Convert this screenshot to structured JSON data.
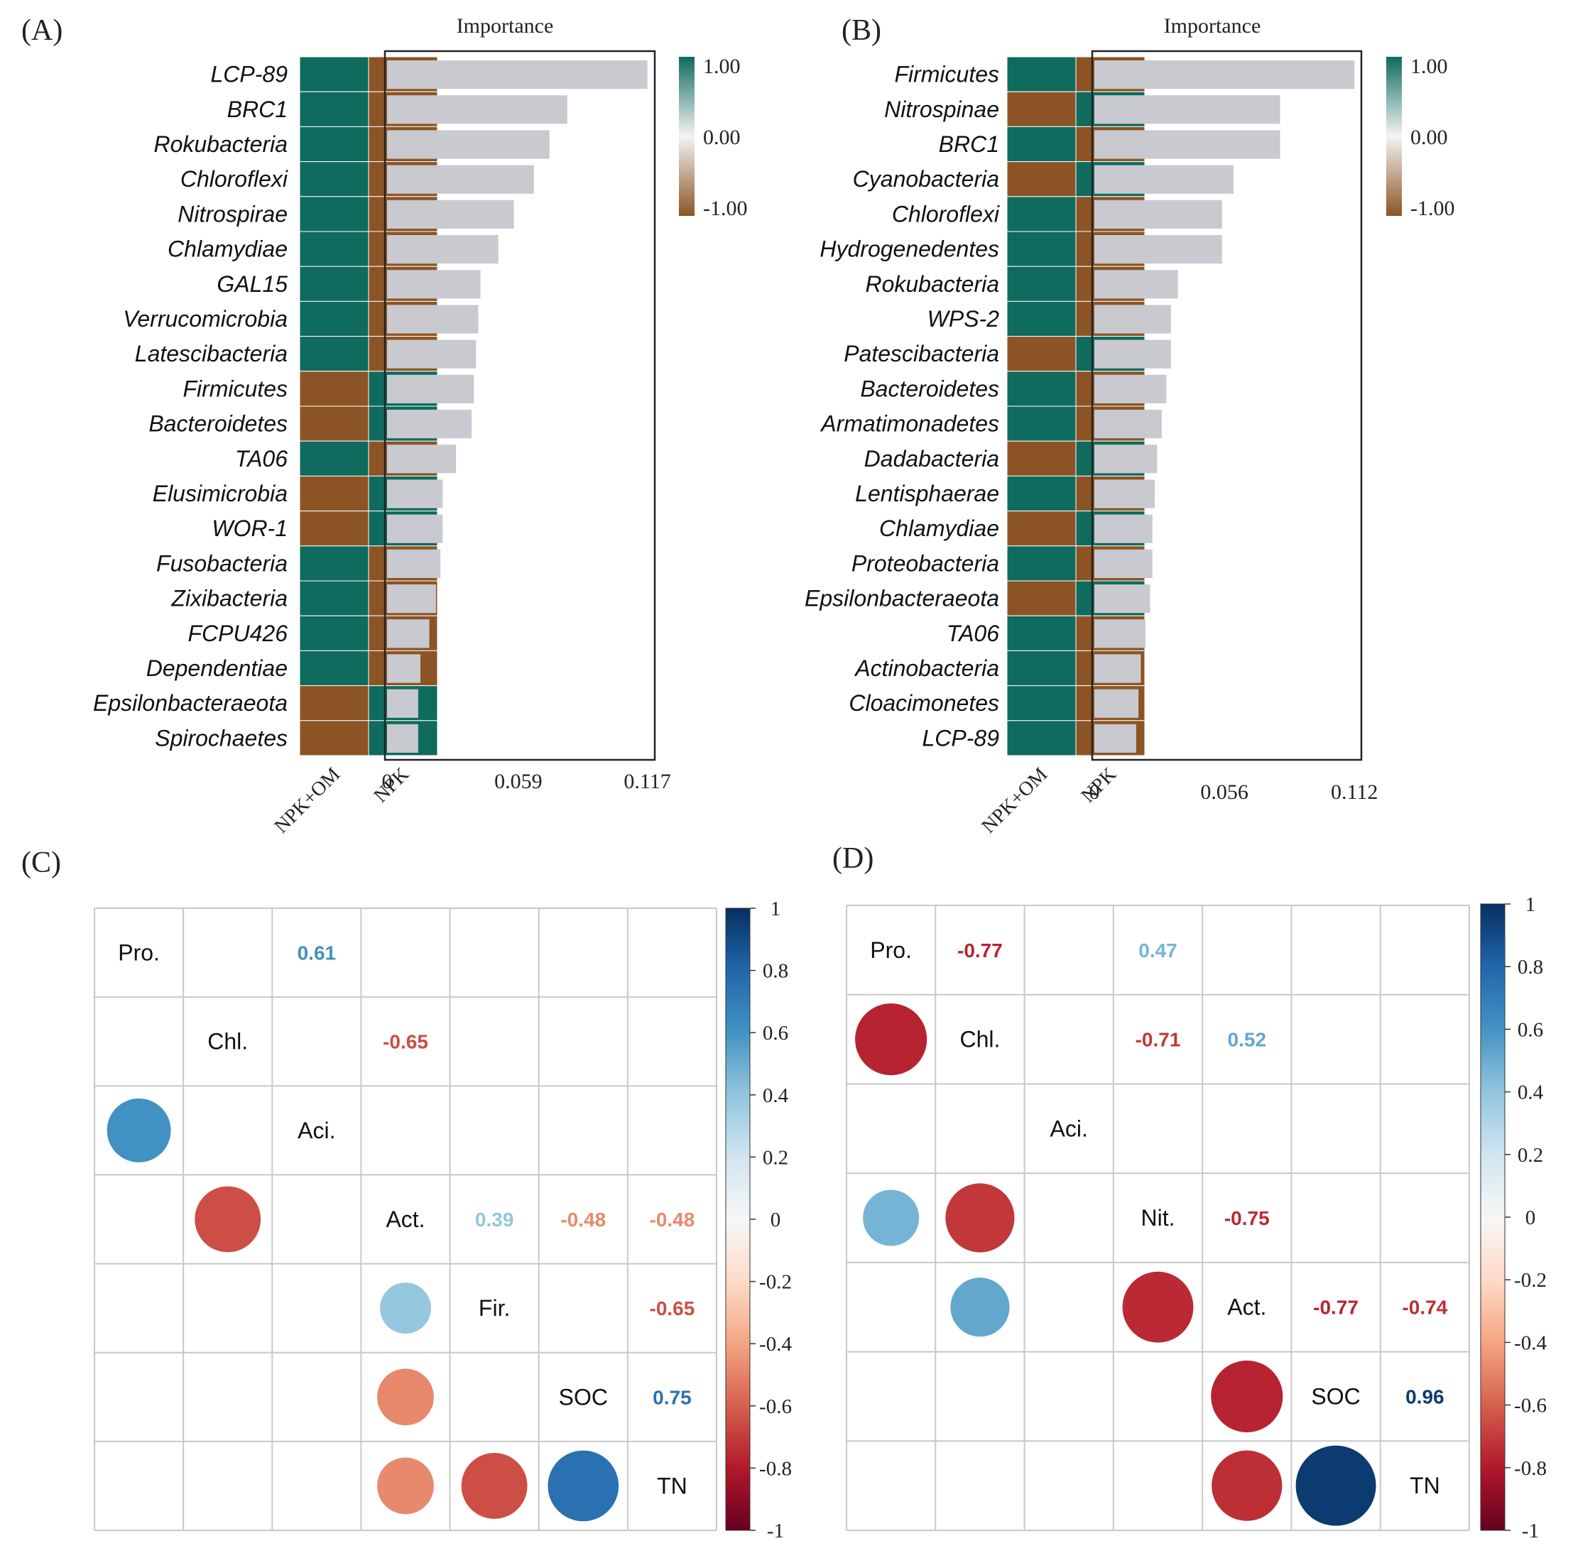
{
  "panels": {
    "a": {
      "label": "(A)"
    },
    "b": {
      "label": "(B)"
    },
    "c": {
      "label": "(C)"
    },
    "d": {
      "label": "(D)"
    }
  },
  "heatmap_columns": [
    "NPK+OM",
    "NPK"
  ],
  "colors": {
    "teal": "#0f6b5e",
    "brown": "#8c5425",
    "bar": "#c9cacf",
    "grid": "#c8c8c8"
  },
  "chart_data": [
    {
      "id": "A",
      "type": "bar",
      "orientation": "horizontal",
      "title": "Importance",
      "categories": [
        "LCP-89",
        "BRC1",
        "Rokubacteria",
        "Chloroflexi",
        "Nitrospirae",
        "Chlamydiae",
        "GAL15",
        "Verrucomicrobia",
        "Latescibacteria",
        "Firmicutes",
        "Bacteroidetes",
        "TA06",
        "Elusimicrobia",
        "WOR-1",
        "Fusobacteria",
        "Zixibacteria",
        "FCPU426",
        "Dependentiae",
        "Epsilonbacteraeota",
        "Spirochaetes"
      ],
      "values": [
        0.117,
        0.081,
        0.073,
        0.066,
        0.057,
        0.05,
        0.042,
        0.041,
        0.04,
        0.039,
        0.038,
        0.031,
        0.025,
        0.025,
        0.024,
        0.022,
        0.019,
        0.015,
        0.014,
        0.014
      ],
      "heatmap": [
        [
          1,
          -1
        ],
        [
          1,
          -1
        ],
        [
          1,
          -1
        ],
        [
          1,
          -1
        ],
        [
          1,
          -1
        ],
        [
          1,
          -1
        ],
        [
          1,
          -1
        ],
        [
          1,
          -1
        ],
        [
          1,
          -1
        ],
        [
          -1,
          1
        ],
        [
          -1,
          1
        ],
        [
          1,
          -1
        ],
        [
          -1,
          1
        ],
        [
          -1,
          1
        ],
        [
          1,
          -1
        ],
        [
          1,
          -1
        ],
        [
          1,
          -1
        ],
        [
          1,
          -1
        ],
        [
          -1,
          1
        ],
        [
          -1,
          1
        ]
      ],
      "xlim": [
        0,
        0.12
      ],
      "xticks": [
        "0",
        "0.059",
        "0.117"
      ],
      "xtick_values": [
        0,
        0.059,
        0.117
      ],
      "colorbar": {
        "ticks": [
          "1.00",
          "0.00",
          "-1.00"
        ],
        "range": [
          -1,
          1
        ]
      }
    },
    {
      "id": "B",
      "type": "bar",
      "orientation": "horizontal",
      "title": "Importance",
      "categories": [
        "Firmicutes",
        "Nitrospinae",
        "BRC1",
        "Cyanobacteria",
        "Chloroflexi",
        "Hydrogenedentes",
        "Rokubacteria",
        "WPS-2",
        "Patescibacteria",
        "Bacteroidetes",
        "Armatimonadetes",
        "Dadabacteria",
        "Lentisphaerae",
        "Chlamydiae",
        "Proteobacteria",
        "Epsilonbacteraeota",
        "TA06",
        "Actinobacteria",
        "Cloacimonetes",
        "LCP-89"
      ],
      "values": [
        0.112,
        0.08,
        0.08,
        0.06,
        0.055,
        0.055,
        0.036,
        0.033,
        0.033,
        0.031,
        0.029,
        0.027,
        0.026,
        0.025,
        0.025,
        0.024,
        0.022,
        0.02,
        0.019,
        0.018
      ],
      "heatmap": [
        [
          1,
          -1
        ],
        [
          -1,
          1
        ],
        [
          1,
          -1
        ],
        [
          -1,
          1
        ],
        [
          1,
          -1
        ],
        [
          1,
          -1
        ],
        [
          1,
          -1
        ],
        [
          1,
          -1
        ],
        [
          -1,
          1
        ],
        [
          1,
          -1
        ],
        [
          1,
          -1
        ],
        [
          -1,
          1
        ],
        [
          1,
          -1
        ],
        [
          -1,
          1
        ],
        [
          1,
          -1
        ],
        [
          -1,
          1
        ],
        [
          1,
          -1
        ],
        [
          1,
          -1
        ],
        [
          1,
          -1
        ],
        [
          1,
          -1
        ]
      ],
      "xlim": [
        0,
        0.1147
      ],
      "xticks": [
        "0",
        "0.056",
        "0.112"
      ],
      "xtick_values": [
        0,
        0.056,
        0.112
      ],
      "colorbar": {
        "ticks": [
          "1.00",
          "0.00",
          "-1.00"
        ],
        "range": [
          -1,
          1
        ]
      }
    },
    {
      "id": "C",
      "type": "heatmap",
      "subtype": "correlation-matrix",
      "variables": [
        "Pro.",
        "Chl.",
        "Aci.",
        "Act.",
        "Fir.",
        "SOC",
        "TN"
      ],
      "upper_labels": [
        {
          "row": 0,
          "col": 2,
          "value": 0.61,
          "text": "0.61"
        },
        {
          "row": 1,
          "col": 3,
          "value": -0.65,
          "text": "-0.65"
        },
        {
          "row": 3,
          "col": 4,
          "value": 0.39,
          "text": "0.39"
        },
        {
          "row": 3,
          "col": 5,
          "value": -0.48,
          "text": "-0.48"
        },
        {
          "row": 3,
          "col": 6,
          "value": -0.48,
          "text": "-0.48"
        },
        {
          "row": 4,
          "col": 6,
          "value": -0.65,
          "text": "-0.65"
        },
        {
          "row": 5,
          "col": 6,
          "value": 0.75,
          "text": "0.75"
        }
      ],
      "lower_circles": [
        {
          "row": 2,
          "col": 0,
          "value": 0.61
        },
        {
          "row": 3,
          "col": 1,
          "value": -0.65
        },
        {
          "row": 4,
          "col": 3,
          "value": 0.39
        },
        {
          "row": 5,
          "col": 3,
          "value": -0.48
        },
        {
          "row": 6,
          "col": 3,
          "value": -0.48
        },
        {
          "row": 6,
          "col": 4,
          "value": -0.65
        },
        {
          "row": 6,
          "col": 5,
          "value": 0.75
        }
      ],
      "colorbar": {
        "ticks": [
          "1",
          "0.8",
          "0.6",
          "0.4",
          "0.2",
          "0",
          "-0.2",
          "-0.4",
          "-0.6",
          "-0.8",
          "-1"
        ],
        "range": [
          -1,
          1
        ]
      }
    },
    {
      "id": "D",
      "type": "heatmap",
      "subtype": "correlation-matrix",
      "variables": [
        "Pro.",
        "Chl.",
        "Aci.",
        "Nit.",
        "Act.",
        "SOC",
        "TN"
      ],
      "upper_labels": [
        {
          "row": 0,
          "col": 1,
          "value": -0.77,
          "text": "-0.77"
        },
        {
          "row": 0,
          "col": 3,
          "value": 0.47,
          "text": "0.47"
        },
        {
          "row": 1,
          "col": 3,
          "value": -0.71,
          "text": "-0.71"
        },
        {
          "row": 1,
          "col": 4,
          "value": 0.52,
          "text": "0.52"
        },
        {
          "row": 3,
          "col": 4,
          "value": -0.75,
          "text": "-0.75"
        },
        {
          "row": 4,
          "col": 5,
          "value": -0.77,
          "text": "-0.77"
        },
        {
          "row": 4,
          "col": 6,
          "value": -0.74,
          "text": "-0.74"
        },
        {
          "row": 5,
          "col": 6,
          "value": 0.96,
          "text": "0.96"
        }
      ],
      "lower_circles": [
        {
          "row": 1,
          "col": 0,
          "value": -0.77
        },
        {
          "row": 3,
          "col": 0,
          "value": 0.47
        },
        {
          "row": 3,
          "col": 1,
          "value": -0.71
        },
        {
          "row": 4,
          "col": 1,
          "value": 0.52
        },
        {
          "row": 4,
          "col": 3,
          "value": -0.75
        },
        {
          "row": 5,
          "col": 4,
          "value": -0.77
        },
        {
          "row": 6,
          "col": 4,
          "value": -0.74
        },
        {
          "row": 6,
          "col": 5,
          "value": 0.96
        }
      ],
      "colorbar": {
        "ticks": [
          "1",
          "0.8",
          "0.6",
          "0.4",
          "0.2",
          "0",
          "-0.2",
          "-0.4",
          "-0.6",
          "-0.8",
          "-1"
        ],
        "range": [
          -1,
          1
        ]
      }
    }
  ]
}
